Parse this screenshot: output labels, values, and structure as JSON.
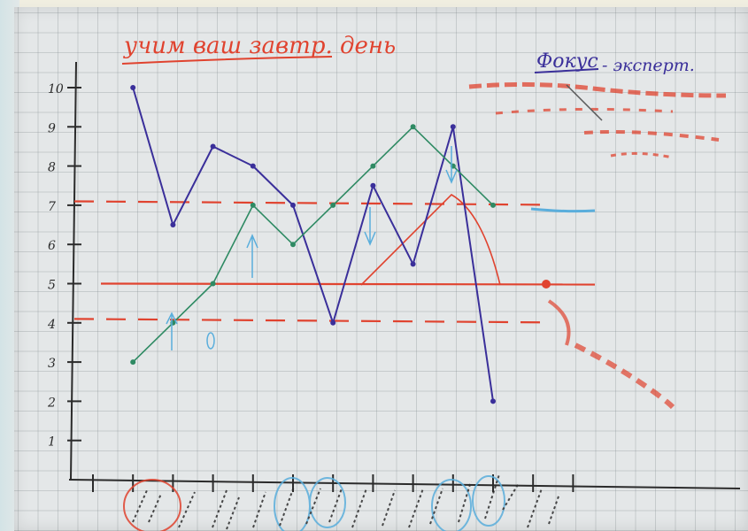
{
  "whiteboard": {
    "title": "учим ваш завтр. день",
    "focus_text": "Фокус",
    "focus_suffix": "- эксперт.",
    "y_axis_ticks": [
      "10",
      "9",
      "8",
      "7",
      "6",
      "5",
      "4",
      "3",
      "2",
      "1"
    ]
  },
  "colors": {
    "blue_marker": "#3a2f9a",
    "green_marker": "#2e8a63",
    "red_marker": "#e0432f",
    "light_blue_marker": "#5aaedc",
    "axis_marker": "#2b2b2b"
  },
  "chart_data": {
    "type": "line",
    "x_positions": [
      1,
      2,
      3,
      4,
      5,
      6,
      7,
      8,
      9,
      10,
      11,
      12,
      13
    ],
    "ylim": [
      0,
      10
    ],
    "series": [
      {
        "values": [
          10,
          6.5,
          8.5,
          8,
          7,
          4,
          7.5,
          5.5,
          9,
          2
        ],
        "x": [
          2,
          3,
          4,
          5,
          6,
          7,
          8,
          9,
          10,
          11
        ]
      },
      {
        "values": [
          3,
          4,
          5,
          7,
          6,
          7,
          8,
          9,
          8,
          7
        ],
        "x": [
          2,
          3,
          4,
          5,
          6,
          7,
          8,
          9,
          10,
          11
        ]
      }
    ],
    "reference_lines": [
      5,
      7.1,
      4.1
    ]
  }
}
